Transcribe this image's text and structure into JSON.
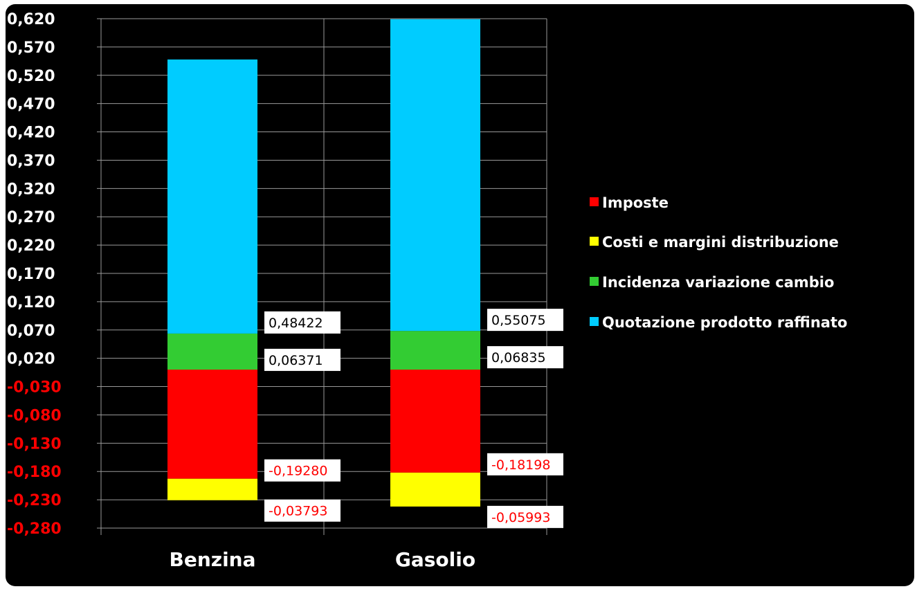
{
  "chart_data": {
    "type": "bar",
    "stacked": true,
    "categories": [
      "Benzina",
      "Gasolio"
    ],
    "series": [
      {
        "name": "Imposte",
        "color": "#ff0000",
        "values": [
          -0.1928,
          -0.18198
        ]
      },
      {
        "name": "Costi e margini distribuzione",
        "color": "#ffff00",
        "values": [
          -0.03793,
          -0.05993
        ]
      },
      {
        "name": "Incidenza variazione cambio",
        "color": "#33cc33",
        "values": [
          0.06371,
          0.06835
        ]
      },
      {
        "name": "Quotazione prodotto raffinato",
        "color": "#00ccff",
        "values": [
          0.48422,
          0.55075
        ]
      }
    ],
    "ylim": [
      -0.28,
      0.62
    ],
    "yticks": [
      "0,620",
      "0,570",
      "0,520",
      "0,470",
      "0,420",
      "0,370",
      "0,320",
      "0,270",
      "0,220",
      "0,170",
      "0,120",
      "0,070",
      "0,020",
      "-0,030",
      "-0,080",
      "-0,130",
      "-0,180",
      "-0,230",
      "-0,280"
    ],
    "ytick_values": [
      0.62,
      0.57,
      0.52,
      0.47,
      0.42,
      0.37,
      0.32,
      0.27,
      0.22,
      0.17,
      0.12,
      0.07,
      0.02,
      -0.03,
      -0.08,
      -0.13,
      -0.18,
      -0.23,
      -0.28
    ],
    "data_labels": [
      [
        "-0,19280",
        "-0,18198"
      ],
      [
        "-0,03793",
        "-0,05993"
      ],
      [
        "0,06371",
        "0,06835"
      ],
      [
        "0,48422",
        "0,55075"
      ]
    ],
    "xlabel": "",
    "ylabel": "",
    "grid": true,
    "legend_position": "right",
    "background": "#000000",
    "positive_tick_color": "#ffffff",
    "negative_tick_color": "#ff0000",
    "positive_label_color": "#000000",
    "negative_label_color": "#ff0000"
  }
}
